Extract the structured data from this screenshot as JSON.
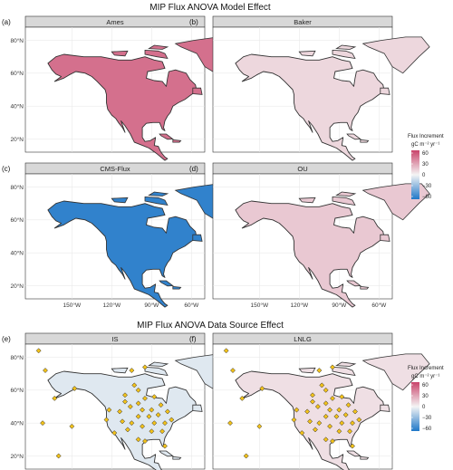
{
  "chart_data": [
    {
      "type": "heatmap",
      "title": "MIP Flux ANOVA Model Effect",
      "panels": [
        {
          "tag": "(a)",
          "name": "Ames",
          "effect": 45
        },
        {
          "tag": "(b)",
          "name": "Baker",
          "effect": 10
        },
        {
          "tag": "(c)",
          "name": "CMS-Flux",
          "effect": -55
        },
        {
          "tag": "(d)",
          "name": "OU",
          "effect": 15
        }
      ],
      "legend": {
        "title": "Flux Increment",
        "unit": "gC m⁻² yr⁻¹",
        "ticks": [
          "60",
          "30",
          "0",
          "−30",
          "−60"
        ],
        "range": [
          -60,
          60
        ]
      },
      "x_ticks": [
        "150°W",
        "120°W",
        "90°W",
        "60°W"
      ],
      "y_ticks": [
        "80°N",
        "60°N",
        "40°N",
        "20°N"
      ]
    },
    {
      "type": "heatmap",
      "title": "MIP Flux ANOVA Data Source Effect",
      "panels": [
        {
          "tag": "(e)",
          "name": "IS",
          "effect": -6
        },
        {
          "tag": "(f)",
          "name": "LNLG",
          "effect": 7
        }
      ],
      "legend": {
        "title": "Flux Increment",
        "unit": "gC m⁻² yr⁻¹",
        "ticks": [
          "60",
          "30",
          "0",
          "−30",
          "−60"
        ],
        "range": [
          -60,
          60
        ]
      },
      "x_ticks": [
        "150°W",
        "120°W",
        "90°W",
        "60°W"
      ],
      "y_ticks": [
        "80°N",
        "60°N",
        "40°N",
        "20°N"
      ],
      "stations": [
        {
          "lon": -175,
          "lat": 84
        },
        {
          "lon": -170,
          "lat": 72
        },
        {
          "lon": -163,
          "lat": 55
        },
        {
          "lon": -172,
          "lat": 40
        },
        {
          "lon": -150,
          "lat": 38
        },
        {
          "lon": -160,
          "lat": 20
        },
        {
          "lon": -148,
          "lat": 61
        },
        {
          "lon": -105,
          "lat": 72
        },
        {
          "lon": -95,
          "lat": 74
        },
        {
          "lon": -100,
          "lat": 60
        },
        {
          "lon": -110,
          "lat": 57
        },
        {
          "lon": -95,
          "lat": 55
        },
        {
          "lon": -88,
          "lat": 56
        },
        {
          "lon": -100,
          "lat": 52
        },
        {
          "lon": -106,
          "lat": 50
        },
        {
          "lon": -97,
          "lat": 48
        },
        {
          "lon": -90,
          "lat": 48
        },
        {
          "lon": -92,
          "lat": 44
        },
        {
          "lon": -85,
          "lat": 45
        },
        {
          "lon": -100,
          "lat": 44
        },
        {
          "lon": -105,
          "lat": 40
        },
        {
          "lon": -112,
          "lat": 41
        },
        {
          "lon": -97,
          "lat": 38
        },
        {
          "lon": -88,
          "lat": 40
        },
        {
          "lon": -80,
          "lat": 40
        },
        {
          "lon": -75,
          "lat": 42
        },
        {
          "lon": -82,
          "lat": 35
        },
        {
          "lon": -108,
          "lat": 36
        },
        {
          "lon": -100,
          "lat": 30
        },
        {
          "lon": -124,
          "lat": 42
        },
        {
          "lon": -118,
          "lat": 34
        },
        {
          "lon": -122,
          "lat": 48
        },
        {
          "lon": -114,
          "lat": 47
        },
        {
          "lon": -110,
          "lat": 53
        },
        {
          "lon": -83,
          "lat": 51
        },
        {
          "lon": -78,
          "lat": 47
        },
        {
          "lon": -95,
          "lat": 29
        },
        {
          "lon": -80,
          "lat": 26
        },
        {
          "lon": -90,
          "lat": 35
        },
        {
          "lon": -103,
          "lat": 63
        }
      ]
    }
  ]
}
